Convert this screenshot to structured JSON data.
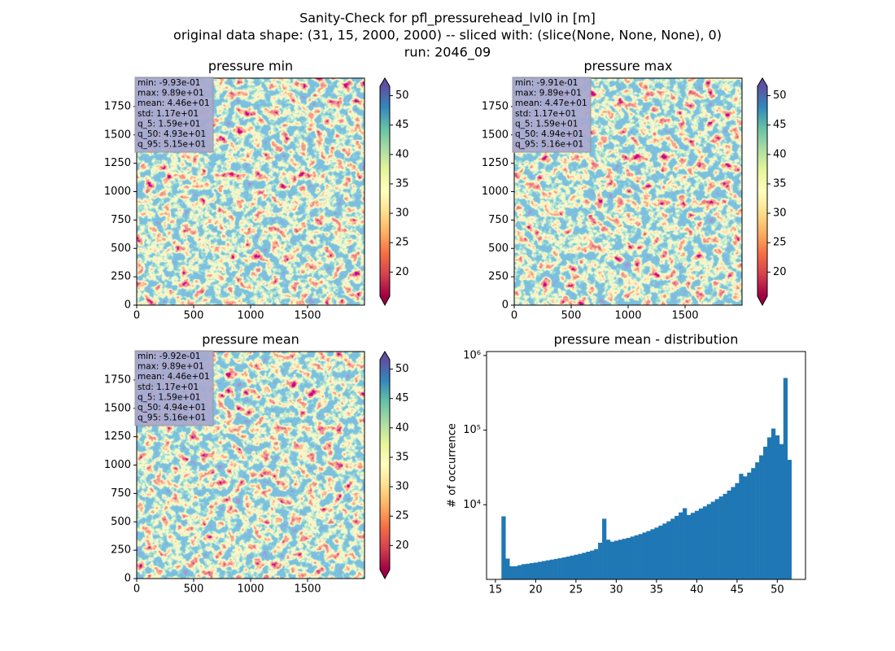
{
  "title": [
    "Sanity-Check for pfl_pressurehead_lvl0 in [m]",
    "original data shape: (31, 15, 2000, 2000) -- sliced with: (slice(None, None, None), 0)",
    "run: 2046_09"
  ],
  "chart_data": [
    {
      "type": "heatmap",
      "title": "pressure min",
      "stats": [
        "min: -9.93e-01",
        "max: 9.89e+01",
        "mean: 4.46e+01",
        "std: 1.17e+01",
        "q_5: 1.59e+01",
        "q_50: 4.93e+01",
        "q_95: 5.15e+01"
      ],
      "xlim": [
        0,
        2000
      ],
      "xticks": [
        0,
        500,
        1000,
        1500
      ],
      "ylim": [
        0,
        2000
      ],
      "yticks": [
        0,
        250,
        500,
        750,
        1000,
        1250,
        1500,
        1750
      ],
      "colorbar": {
        "colormap": "Spectral",
        "lim": [
          15.9,
          51.6
        ],
        "ticks": [
          20,
          25,
          30,
          35,
          40,
          45,
          50
        ]
      }
    },
    {
      "type": "heatmap",
      "title": "pressure max",
      "stats": [
        "min: -9.91e-01",
        "max: 9.89e+01",
        "mean: 4.47e+01",
        "std: 1.17e+01",
        "q_5: 1.59e+01",
        "q_50: 4.94e+01",
        "q_95: 5.16e+01"
      ],
      "xlim": [
        0,
        2000
      ],
      "xticks": [
        0,
        500,
        1000,
        1500
      ],
      "ylim": [
        0,
        2000
      ],
      "yticks": [
        0,
        250,
        500,
        750,
        1000,
        1250,
        1500,
        1750
      ],
      "colorbar": {
        "colormap": "Spectral",
        "lim": [
          15.9,
          51.6
        ],
        "ticks": [
          20,
          25,
          30,
          35,
          40,
          45,
          50
        ]
      }
    },
    {
      "type": "heatmap",
      "title": "pressure mean",
      "stats": [
        "min: -9.92e-01",
        "max: 9.89e+01",
        "mean: 4.46e+01",
        "std: 1.17e+01",
        "q_5: 1.59e+01",
        "q_50: 4.94e+01",
        "q_95: 5.16e+01"
      ],
      "xlim": [
        0,
        2000
      ],
      "xticks": [
        0,
        500,
        1000,
        1500
      ],
      "ylim": [
        0,
        2000
      ],
      "yticks": [
        0,
        250,
        500,
        750,
        1000,
        1250,
        1500,
        1750
      ],
      "colorbar": {
        "colormap": "Spectral",
        "lim": [
          15.9,
          51.6
        ],
        "ticks": [
          20,
          25,
          30,
          35,
          40,
          45,
          50
        ]
      }
    },
    {
      "type": "histogram",
      "title": "pressure mean - distribution",
      "ylabel": "# of occurrence",
      "color": "#1f77b4",
      "bins": [
        15.75,
        16.25,
        16.75,
        17.25,
        17.75,
        18.25,
        18.75,
        19.25,
        19.75,
        20.25,
        20.75,
        21.25,
        21.75,
        22.25,
        22.75,
        23.25,
        23.75,
        24.25,
        24.75,
        25.25,
        25.75,
        26.25,
        26.75,
        27.25,
        27.75,
        28.25,
        28.75,
        29.25,
        29.75,
        30.25,
        30.75,
        31.25,
        31.75,
        32.25,
        32.75,
        33.25,
        33.75,
        34.25,
        34.75,
        35.25,
        35.75,
        36.25,
        36.75,
        37.25,
        37.75,
        38.25,
        38.75,
        39.25,
        39.75,
        40.25,
        40.75,
        41.25,
        41.75,
        42.25,
        42.75,
        43.25,
        43.75,
        44.25,
        44.75,
        45.25,
        45.75,
        46.25,
        46.75,
        47.25,
        47.75,
        48.25,
        48.75,
        49.25,
        49.75,
        50.25,
        50.75,
        51.25,
        51.75
      ],
      "values": [
        7000,
        1900,
        1500,
        1500,
        1550,
        1600,
        1620,
        1650,
        1680,
        1720,
        1760,
        1800,
        1840,
        1880,
        1920,
        1970,
        2020,
        2080,
        2140,
        2200,
        2270,
        2350,
        2430,
        2550,
        3100,
        6500,
        3400,
        3200,
        3300,
        3400,
        3500,
        3600,
        3750,
        3900,
        4050,
        4250,
        4450,
        4700,
        4950,
        5250,
        5600,
        6000,
        6500,
        7100,
        7900,
        9000,
        7300,
        7800,
        8300,
        8900,
        9500,
        10200,
        11000,
        11900,
        12900,
        14000,
        15500,
        17300,
        19500,
        26000,
        24000,
        27000,
        31000,
        37000,
        46000,
        60000,
        80000,
        105000,
        85000,
        65000,
        500000,
        40000
      ],
      "xlim": [
        13.9,
        53.5
      ],
      "xticks": [
        15,
        20,
        25,
        30,
        35,
        40,
        45,
        50
      ],
      "yscale": "log",
      "ylim": [
        1000,
        1130000
      ],
      "yticks": [
        {
          "value": 10000,
          "label": "10⁴"
        },
        {
          "value": 100000,
          "label": "10⁵"
        },
        {
          "value": 1000000,
          "label": "10⁶"
        }
      ]
    }
  ]
}
